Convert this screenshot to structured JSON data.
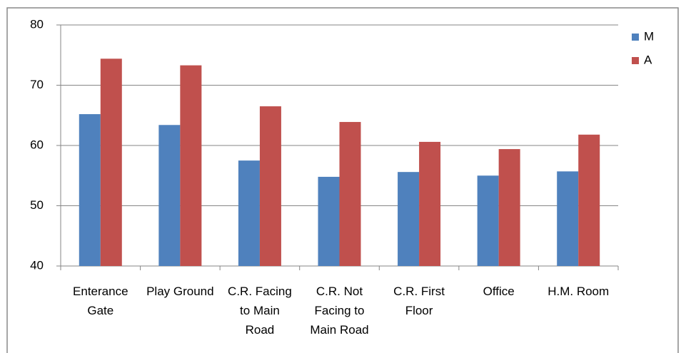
{
  "chart_data": {
    "type": "bar",
    "categories": [
      "Enterance Gate",
      "Play Ground",
      "C.R. Facing to Main Road",
      "C.R. Not Facing to Main Road",
      "C.R. First Floor",
      "Office",
      "H.M. Room"
    ],
    "series": [
      {
        "name": "M",
        "color": "#4f81bd",
        "values": [
          65.2,
          63.4,
          57.5,
          54.8,
          55.6,
          55.0,
          55.7
        ]
      },
      {
        "name": "A",
        "color": "#c0504d",
        "values": [
          74.4,
          73.3,
          66.5,
          63.9,
          60.6,
          59.4,
          61.8
        ]
      }
    ],
    "ylim": [
      40,
      80
    ],
    "yticks": [
      40,
      50,
      60,
      70,
      80
    ],
    "grid": true,
    "legend": "right"
  }
}
